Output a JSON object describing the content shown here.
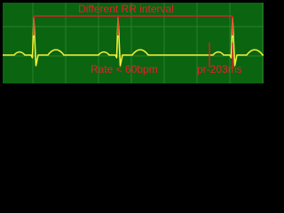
{
  "annotations": {
    "rr_interval": "Different RR interval",
    "rate": "Rate < 60bpm",
    "pr": "pr-203ms"
  }
}
